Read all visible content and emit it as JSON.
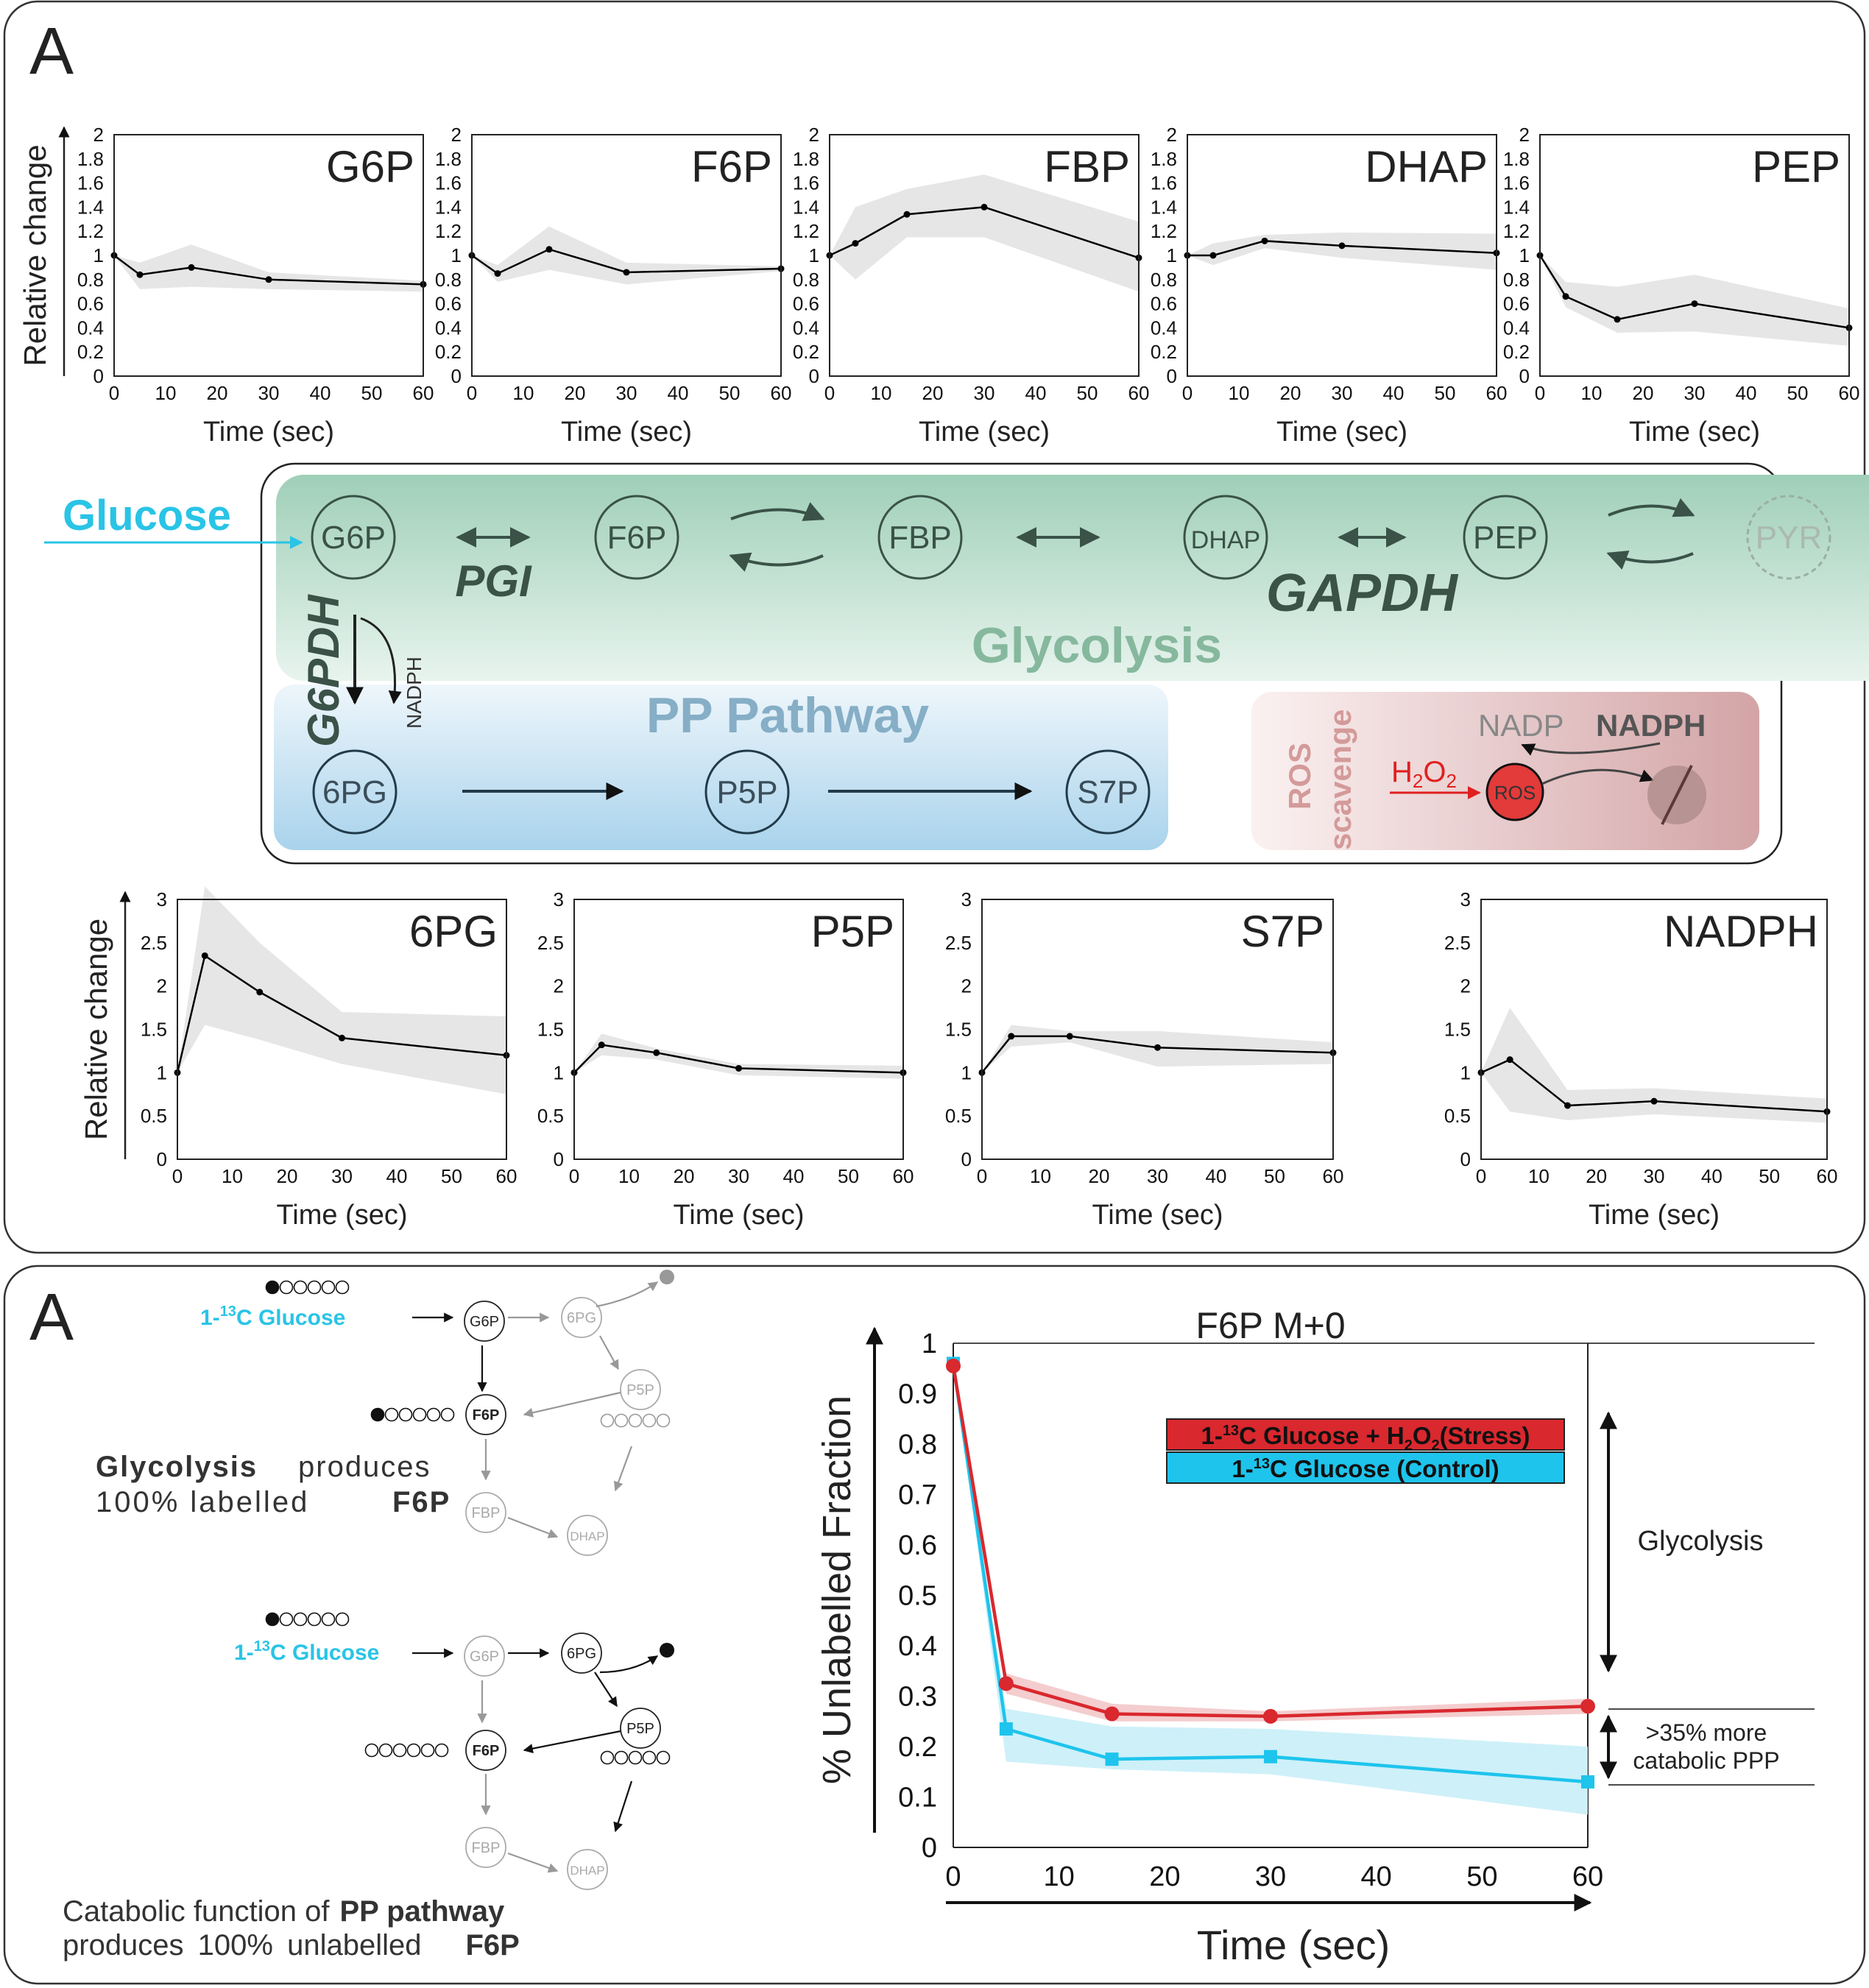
{
  "panel_top_letter": "A",
  "panel_bottom_letter": "A",
  "pathway": {
    "glucose": "Glucose",
    "nodes_glycolysis": [
      "G6P",
      "F6P",
      "FBP",
      "DHAP",
      "PEP",
      "PYR"
    ],
    "nodes_ppp": [
      "6PG",
      "P5P",
      "S7P"
    ],
    "enzymes": [
      "PGI",
      "GAPDH",
      "G6PDH"
    ],
    "nadph_small": "NADPH",
    "glycolysis_label": "Glycolysis",
    "ppp_label": "PP Pathway",
    "ros_label_1": "ROS",
    "ros_label_2": "scavenge",
    "nadp": "NADP",
    "nadph": "NADPH",
    "h2o2_h": "H",
    "h2o2_2a": "2",
    "h2o2_o": "O",
    "h2o2_2b": "2",
    "ros": "ROS",
    "colors": {
      "glucose": "#29c4e6",
      "glycolysis": "#cde9dd",
      "ppp": "#b4d9ef",
      "ros": "#d4aaaa",
      "node_stroke": "#3a5248"
    }
  },
  "labeling": {
    "glucose_1": "1-",
    "glucose_sup": "13",
    "glucose_2": "C Glucose",
    "nodes_a": [
      "G6P",
      "6PG",
      "F6P",
      "P5P",
      "FBP",
      "DHAP"
    ],
    "nodes_b": [
      "G6P",
      "6PG",
      "F6P",
      "P5P",
      "FBP",
      "DHAP"
    ],
    "text_a_bold": "Glycolysis",
    "text_a_1": "produces",
    "text_a_2": "100%  labelled",
    "text_a_bold2": "F6P",
    "text_b_1": "Catabolic function of",
    "text_b_bold": "PP pathway",
    "text_b_2": "produces  100%  unlabelled",
    "text_b_bold2": "F6P"
  },
  "chart_data": [
    {
      "type": "line",
      "title": "G6P",
      "xlabel": "Time (sec)",
      "ylabel": "Relative change",
      "x": [
        0,
        5,
        15,
        30,
        60
      ],
      "y": [
        1.0,
        0.84,
        0.9,
        0.8,
        0.76
      ],
      "band_low": [
        1.0,
        0.72,
        0.74,
        0.72,
        0.7
      ],
      "band_high": [
        1.0,
        0.94,
        1.09,
        0.86,
        0.79
      ],
      "xlim": [
        0,
        60
      ],
      "ylim": [
        0,
        2
      ],
      "xticks": [
        0,
        10,
        20,
        30,
        40,
        50,
        60
      ],
      "yticks": [
        "0",
        "0.2",
        "0.4",
        "0.6",
        "0.8",
        "1",
        "1.2",
        "1.4",
        "1.6",
        "1.8",
        "2"
      ]
    },
    {
      "type": "line",
      "title": "F6P",
      "xlabel": "Time (sec)",
      "ylabel": "",
      "x": [
        0,
        5,
        15,
        30,
        60
      ],
      "y": [
        1.0,
        0.85,
        1.05,
        0.86,
        0.89
      ],
      "band_low": [
        1.0,
        0.78,
        0.88,
        0.76,
        0.87
      ],
      "band_high": [
        1.0,
        0.92,
        1.24,
        0.94,
        0.91
      ],
      "xlim": [
        0,
        60
      ],
      "ylim": [
        0,
        2
      ],
      "xticks": [
        0,
        10,
        20,
        30,
        40,
        50,
        60
      ],
      "yticks": [
        "0",
        "0.2",
        "0.4",
        "0.6",
        "0.8",
        "1",
        "1.2",
        "1.4",
        "1.6",
        "1.8",
        "2"
      ]
    },
    {
      "type": "line",
      "title": "FBP",
      "xlabel": "Time (sec)",
      "ylabel": "",
      "x": [
        0,
        5,
        15,
        30,
        60
      ],
      "y": [
        1.0,
        1.1,
        1.34,
        1.4,
        0.98
      ],
      "band_low": [
        1.0,
        0.8,
        1.15,
        1.15,
        0.7
      ],
      "band_high": [
        1.0,
        1.4,
        1.55,
        1.67,
        1.28
      ],
      "xlim": [
        0,
        60
      ],
      "ylim": [
        0,
        2
      ],
      "xticks": [
        0,
        10,
        20,
        30,
        40,
        50,
        60
      ],
      "yticks": [
        "0",
        "0.2",
        "0.4",
        "0.6",
        "0.8",
        "1",
        "1.2",
        "1.4",
        "1.6",
        "1.8",
        "2"
      ]
    },
    {
      "type": "line",
      "title": "DHAP",
      "xlabel": "Time (sec)",
      "ylabel": "",
      "x": [
        0,
        5,
        15,
        30,
        60
      ],
      "y": [
        1.0,
        1.0,
        1.12,
        1.08,
        1.02
      ],
      "band_low": [
        1.0,
        0.92,
        1.06,
        0.98,
        0.88
      ],
      "band_high": [
        1.0,
        1.1,
        1.17,
        1.19,
        1.18
      ],
      "xlim": [
        0,
        60
      ],
      "ylim": [
        0,
        2
      ],
      "xticks": [
        0,
        10,
        20,
        30,
        40,
        50,
        60
      ],
      "yticks": [
        "0",
        "0.2",
        "0.4",
        "0.6",
        "0.8",
        "1",
        "1.2",
        "1.4",
        "1.6",
        "1.8",
        "2"
      ]
    },
    {
      "type": "line",
      "title": "PEP",
      "xlabel": "Time (sec)",
      "ylabel": "",
      "x": [
        0,
        5,
        15,
        30,
        60
      ],
      "y": [
        1.0,
        0.66,
        0.47,
        0.6,
        0.4
      ],
      "band_low": [
        1.0,
        0.57,
        0.36,
        0.37,
        0.25
      ],
      "band_high": [
        1.0,
        0.78,
        0.74,
        0.84,
        0.56
      ],
      "xlim": [
        0,
        60
      ],
      "ylim": [
        0,
        2
      ],
      "xticks": [
        0,
        10,
        20,
        30,
        40,
        50,
        60
      ],
      "yticks": [
        "0",
        "0.2",
        "0.4",
        "0.6",
        "0.8",
        "1",
        "1.2",
        "1.4",
        "1.6",
        "1.8",
        "2"
      ]
    },
    {
      "type": "line",
      "title": "6PG",
      "xlabel": "Time (sec)",
      "ylabel": "Relative change",
      "x": [
        0,
        5,
        15,
        30,
        60
      ],
      "y": [
        1.0,
        2.35,
        1.93,
        1.4,
        1.2
      ],
      "band_low": [
        1.0,
        1.55,
        1.38,
        1.1,
        0.75
      ],
      "band_high": [
        1.0,
        3.15,
        2.5,
        1.7,
        1.65
      ],
      "xlim": [
        0,
        60
      ],
      "ylim": [
        0,
        3
      ],
      "xticks": [
        0,
        10,
        20,
        30,
        40,
        50,
        60
      ],
      "yticks": [
        "0",
        "0.5",
        "1",
        "1.5",
        "2",
        "2.5",
        "3"
      ]
    },
    {
      "type": "line",
      "title": "P5P",
      "xlabel": "Time (sec)",
      "ylabel": "",
      "x": [
        0,
        5,
        15,
        30,
        60
      ],
      "y": [
        1.0,
        1.32,
        1.23,
        1.05,
        1.0
      ],
      "band_low": [
        1.0,
        1.2,
        1.15,
        0.97,
        0.93
      ],
      "band_high": [
        1.0,
        1.45,
        1.28,
        1.1,
        1.08
      ],
      "xlim": [
        0,
        60
      ],
      "ylim": [
        0,
        3
      ],
      "xticks": [
        0,
        10,
        20,
        30,
        40,
        50,
        60
      ],
      "yticks": [
        "0",
        "0.5",
        "1",
        "1.5",
        "2",
        "2.5",
        "3"
      ]
    },
    {
      "type": "line",
      "title": "S7P",
      "xlabel": "Time (sec)",
      "ylabel": "",
      "x": [
        0,
        5,
        15,
        30,
        60
      ],
      "y": [
        1.0,
        1.42,
        1.42,
        1.29,
        1.23
      ],
      "band_low": [
        1.0,
        1.3,
        1.35,
        1.07,
        1.1
      ],
      "band_high": [
        1.0,
        1.55,
        1.48,
        1.48,
        1.35
      ],
      "xlim": [
        0,
        60
      ],
      "ylim": [
        0,
        3
      ],
      "xticks": [
        0,
        10,
        20,
        30,
        40,
        50,
        60
      ],
      "yticks": [
        "0",
        "0.5",
        "1",
        "1.5",
        "2",
        "2.5",
        "3"
      ]
    },
    {
      "type": "line",
      "title": "NADPH",
      "xlabel": "Time (sec)",
      "ylabel": "",
      "x": [
        0,
        5,
        15,
        30,
        60
      ],
      "y": [
        1.0,
        1.15,
        0.62,
        0.67,
        0.55
      ],
      "band_low": [
        1.0,
        0.55,
        0.45,
        0.52,
        0.42
      ],
      "band_high": [
        1.0,
        1.75,
        0.8,
        0.82,
        0.7
      ],
      "xlim": [
        0,
        60
      ],
      "ylim": [
        0,
        3
      ],
      "xticks": [
        0,
        10,
        20,
        30,
        40,
        50,
        60
      ],
      "yticks": [
        "0",
        "0.5",
        "1",
        "1.5",
        "2",
        "2.5",
        "3"
      ]
    },
    {
      "type": "line",
      "title": "F6P M+0",
      "xlabel": "Time (sec)",
      "ylabel": "% Unlabelled Fraction",
      "x": [
        0,
        5,
        15,
        30,
        60
      ],
      "xlim": [
        0,
        60
      ],
      "ylim": [
        0,
        1
      ],
      "xticks": [
        0,
        10,
        20,
        30,
        40,
        50,
        60
      ],
      "yticks": [
        "0",
        "0.1",
        "0.2",
        "0.3",
        "0.4",
        "0.5",
        "0.6",
        "0.7",
        "0.8",
        "0.9",
        "1"
      ],
      "series": [
        {
          "name": "1-13C Glucose + H2O2 (Stress)",
          "color": "#d9282e",
          "band": "#f2c4c6",
          "y": [
            0.955,
            0.325,
            0.265,
            0.26,
            0.28
          ],
          "band_low": [
            0.955,
            0.305,
            0.25,
            0.25,
            0.265
          ],
          "band_high": [
            0.955,
            0.345,
            0.285,
            0.27,
            0.295
          ]
        },
        {
          "name": "1-13C Glucose (Control)",
          "color": "#1ec4ec",
          "band": "#c5edf8",
          "y": [
            0.96,
            0.235,
            0.175,
            0.18,
            0.13
          ],
          "band_low": [
            0.96,
            0.17,
            0.155,
            0.145,
            0.065
          ],
          "band_high": [
            0.96,
            0.275,
            0.24,
            0.235,
            0.2
          ]
        }
      ],
      "legend_stress_1": "1-",
      "legend_stress_sup": "13",
      "legend_stress_2": "C Glucose + H",
      "legend_stress_sub": "2",
      "legend_stress_3": "O",
      "legend_stress_sub2": "2",
      "legend_stress_4": "(Stress)",
      "legend_control_1": "1-",
      "legend_control_sup": "13",
      "legend_control_2": "C Glucose (Control)",
      "annot_glycolysis": "Glycolysis",
      "annot_ppp_1": ">35% more",
      "annot_ppp_2": "catabolic PPP"
    }
  ]
}
